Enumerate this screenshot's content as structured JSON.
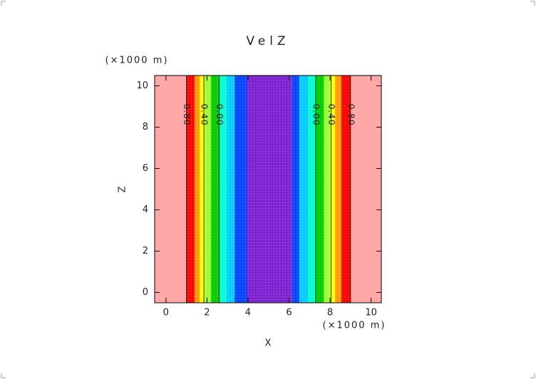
{
  "chart_data": {
    "type": "contour",
    "title": "VelZ",
    "x_label": "X",
    "y_label": "Z",
    "x_unit": "(×1000 m)",
    "y_unit": "(×1000 m)",
    "xlim": [
      -0.55,
      10.5
    ],
    "ylim": [
      -0.5,
      10.5
    ],
    "xticks": [
      0,
      2,
      4,
      6,
      8,
      10
    ],
    "yticks": [
      0,
      2,
      4,
      6,
      8,
      10
    ],
    "bands": [
      {
        "x": [
          -0.55,
          1.0
        ],
        "color": "#ffa3a3"
      },
      {
        "x": [
          1.0,
          1.4
        ],
        "color": "#ff0000"
      },
      {
        "x": [
          1.4,
          1.65
        ],
        "color": "#ff9900"
      },
      {
        "x": [
          1.65,
          1.9
        ],
        "color": "#ffff00"
      },
      {
        "x": [
          1.9,
          2.2
        ],
        "color": "#99ff33"
      },
      {
        "x": [
          2.2,
          2.6
        ],
        "color": "#00cc00"
      },
      {
        "x": [
          2.6,
          2.95
        ],
        "color": "#00ffcc"
      },
      {
        "x": [
          2.95,
          3.35
        ],
        "color": "#00ccff"
      },
      {
        "x": [
          3.35,
          3.95
        ],
        "color": "#0044ff"
      },
      {
        "x": [
          3.95,
          6.15
        ],
        "color": "#7b1fd0"
      },
      {
        "x": [
          6.15,
          6.5
        ],
        "color": "#0044ff"
      },
      {
        "x": [
          6.5,
          6.95
        ],
        "color": "#00ccff"
      },
      {
        "x": [
          6.95,
          7.3
        ],
        "color": "#00ffcc"
      },
      {
        "x": [
          7.3,
          7.7
        ],
        "color": "#00cc00"
      },
      {
        "x": [
          7.7,
          8.0
        ],
        "color": "#99ff33"
      },
      {
        "x": [
          8.0,
          8.25
        ],
        "color": "#ffff00"
      },
      {
        "x": [
          8.25,
          8.55
        ],
        "color": "#ff9900"
      },
      {
        "x": [
          8.55,
          9.0
        ],
        "color": "#ff0000"
      },
      {
        "x": [
          9.0,
          10.5
        ],
        "color": "#ffa3a3"
      }
    ],
    "contours": [
      {
        "value": 0.8,
        "label": "0.80",
        "x": [
          1.0,
          9.0
        ]
      },
      {
        "value": 0.4,
        "label": "0.40",
        "x": [
          1.85,
          8.05
        ]
      },
      {
        "value": 0.0,
        "label": "0.00",
        "x": [
          2.6,
          7.3
        ]
      }
    ]
  }
}
